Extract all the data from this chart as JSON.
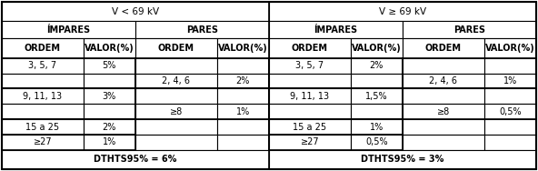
{
  "title_left": "V < 69 kV",
  "title_right": "V ≥ 69 kV",
  "sub_left1": "ÍMPARES",
  "sub_left2": "PARES",
  "sub_right1": "ÍMPARES",
  "sub_right2": "PARES",
  "col_headers": [
    "ORDEM",
    "VALOR(%)",
    "ORDEM",
    "VALOR(%)",
    "ORDEM",
    "VALOR(%)",
    "ORDEM",
    "VALOR(%)"
  ],
  "rows": [
    [
      "3, 5, 7",
      "5%",
      "",
      "",
      "3, 5, 7",
      "2%",
      "",
      ""
    ],
    [
      "",
      "",
      "2, 4, 6",
      "2%",
      "",
      "",
      "2, 4, 6",
      "1%"
    ],
    [
      "9, 11, 13",
      "3%",
      "",
      "",
      "9, 11, 13",
      "1,5%",
      "",
      ""
    ],
    [
      "",
      "",
      "≥8",
      "1%",
      "",
      "",
      "≥8",
      "0,5%"
    ],
    [
      "15 a 25",
      "2%",
      "",
      "",
      "15 a 25",
      "1%",
      "",
      ""
    ],
    [
      "≥27",
      "1%",
      "",
      "",
      "≥27",
      "0,5%",
      "",
      ""
    ]
  ],
  "footer_left": "DTHTS95% = 6%",
  "footer_right": "DTHTS95% = 3%",
  "bg_color": "#ffffff",
  "border_color": "#000000",
  "text_color": "#000000",
  "font_size": 7.0,
  "header_font_size": 7.0,
  "title_font_size": 7.5
}
